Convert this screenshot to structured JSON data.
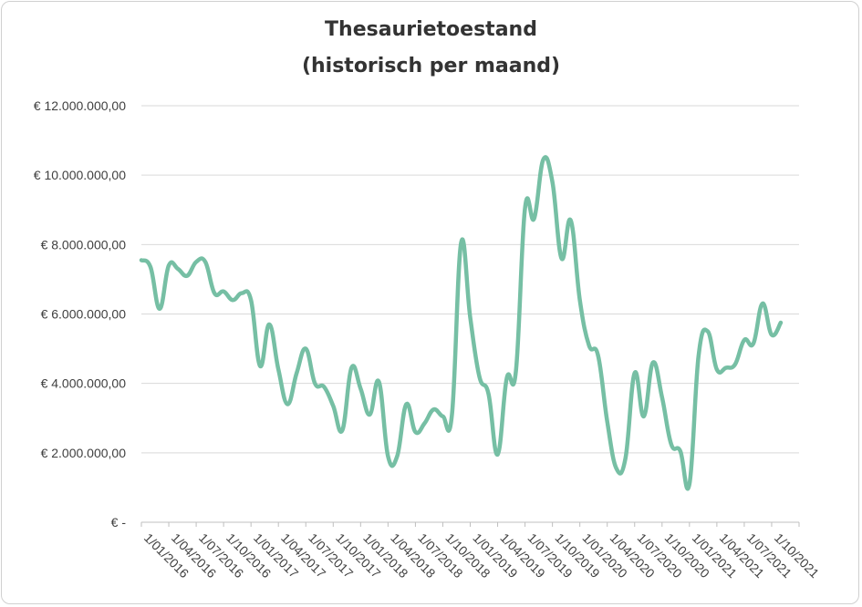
{
  "chart_data": {
    "type": "line",
    "title": "Thesaurietoestand",
    "subtitle": "(historisch per maand)",
    "xlabel": "",
    "ylabel": "",
    "ylim": [
      0,
      12000000
    ],
    "grid": true,
    "color": "#76bfa4",
    "y_ticks": [
      {
        "value": 0,
        "label": "€ -"
      },
      {
        "value": 2000000,
        "label": "€ 2.000.000,00"
      },
      {
        "value": 4000000,
        "label": "€ 4.000.000,00"
      },
      {
        "value": 6000000,
        "label": "€ 6.000.000,00"
      },
      {
        "value": 8000000,
        "label": "€ 8.000.000,00"
      },
      {
        "value": 10000000,
        "label": "€ 10.000.000,00"
      },
      {
        "value": 12000000,
        "label": "€ 12.000.000,00"
      }
    ],
    "x_tick_labels": [
      "1/01/2016",
      "1/04/2016",
      "1/07/2016",
      "1/10/2016",
      "1/01/2017",
      "1/04/2017",
      "1/07/2017",
      "1/10/2017",
      "1/01/2018",
      "1/04/2018",
      "1/07/2018",
      "1/10/2018",
      "1/01/2019",
      "1/04/2019",
      "1/07/2019",
      "1/10/2019",
      "1/01/2020",
      "1/04/2020",
      "1/07/2020",
      "1/10/2020",
      "1/01/2021",
      "1/04/2021",
      "1/07/2021",
      "1/10/2021"
    ],
    "series": [
      {
        "x": [
          "1/01/2016",
          "1/02/2016",
          "1/03/2016",
          "1/04/2016",
          "1/05/2016",
          "1/06/2016",
          "1/07/2016",
          "1/08/2016",
          "1/09/2016",
          "1/10/2016",
          "1/11/2016",
          "1/12/2016",
          "1/01/2017",
          "1/02/2017",
          "1/03/2017",
          "1/04/2017",
          "1/05/2017",
          "1/06/2017",
          "1/07/2017",
          "1/08/2017",
          "1/09/2017",
          "1/10/2017",
          "1/11/2017",
          "1/12/2017",
          "1/01/2018",
          "1/02/2018",
          "1/03/2018",
          "1/04/2018",
          "1/05/2018",
          "1/06/2018",
          "1/07/2018",
          "1/08/2018",
          "1/09/2018",
          "1/10/2018",
          "1/11/2018",
          "1/12/2018",
          "1/01/2019",
          "1/02/2019",
          "1/03/2019",
          "1/04/2019",
          "1/05/2019",
          "1/06/2019",
          "1/07/2019",
          "1/08/2019",
          "1/09/2019",
          "1/10/2019",
          "1/11/2019",
          "1/12/2019",
          "1/01/2020",
          "1/02/2020",
          "1/03/2020",
          "1/04/2020",
          "1/05/2020",
          "1/06/2020",
          "1/07/2020",
          "1/08/2020",
          "1/09/2020",
          "1/10/2020",
          "1/11/2020",
          "1/12/2020",
          "1/01/2021",
          "1/02/2021",
          "1/03/2021",
          "1/04/2021",
          "1/05/2021",
          "1/06/2021",
          "1/07/2021",
          "1/08/2021",
          "1/09/2021",
          "1/10/2021",
          "1/11/2021"
        ],
        "values": [
          7550000,
          7350000,
          6150000,
          7400000,
          7300000,
          7100000,
          7500000,
          7500000,
          6600000,
          6650000,
          6400000,
          6600000,
          6400000,
          4500000,
          5700000,
          4400000,
          3400000,
          4300000,
          5000000,
          4000000,
          3900000,
          3350000,
          2650000,
          4450000,
          3850000,
          3100000,
          4050000,
          1900000,
          1900000,
          3400000,
          2600000,
          2850000,
          3250000,
          3050000,
          3100000,
          8050000,
          5900000,
          4200000,
          3700000,
          1950000,
          4150000,
          4350000,
          9050000,
          8750000,
          10450000,
          9800000,
          7600000,
          8700000,
          6400000,
          5100000,
          4800000,
          2900000,
          1550000,
          1850000,
          4300000,
          3050000,
          4600000,
          3600000,
          2250000,
          2050000,
          1100000,
          4800000,
          5500000,
          4400000,
          4450000,
          4550000,
          5250000,
          5150000,
          6300000,
          5400000,
          5750000
        ]
      }
    ]
  }
}
